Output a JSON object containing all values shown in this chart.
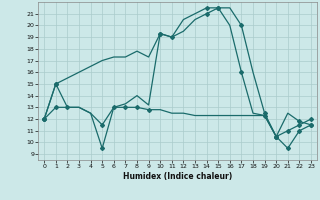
{
  "xlabel": "Humidex (Indice chaleur)",
  "bg_color": "#cce8e8",
  "grid_color": "#aacccc",
  "line_color": "#1a6b6b",
  "xlim": [
    -0.5,
    23.5
  ],
  "ylim": [
    8.5,
    22
  ],
  "yticks": [
    9,
    10,
    11,
    12,
    13,
    14,
    15,
    16,
    17,
    18,
    19,
    20,
    21
  ],
  "xticks": [
    0,
    1,
    2,
    3,
    4,
    5,
    6,
    7,
    8,
    9,
    10,
    11,
    12,
    13,
    14,
    15,
    16,
    17,
    18,
    19,
    20,
    21,
    22,
    23
  ],
  "line1_x": [
    0,
    1,
    2,
    3,
    4,
    5,
    6,
    7,
    8,
    9,
    10,
    11,
    12,
    13,
    14,
    15,
    16,
    17,
    18,
    19,
    20,
    21,
    22,
    23
  ],
  "line1_y": [
    12,
    15,
    13,
    13,
    12.5,
    9.5,
    13,
    13.3,
    14,
    13.2,
    19.3,
    19,
    20.5,
    21,
    21.5,
    21.5,
    20,
    16,
    12.5,
    12.3,
    10.5,
    9.5,
    11,
    11.5
  ],
  "line2_x": [
    0,
    1,
    2,
    3,
    4,
    5,
    6,
    7,
    8,
    9,
    10,
    11,
    12,
    13,
    14,
    15,
    16,
    17,
    18,
    19,
    20,
    21,
    22,
    23
  ],
  "line2_y": [
    12,
    13,
    13,
    13,
    12.5,
    11.5,
    13,
    13,
    13,
    12.8,
    12.8,
    12.5,
    12.5,
    12.3,
    12.3,
    12.3,
    12.3,
    12.3,
    12.3,
    12.3,
    10.5,
    12.5,
    11.8,
    11.5
  ],
  "line3_x": [
    0,
    1,
    2,
    3,
    4,
    5,
    6,
    7,
    8,
    9,
    10,
    11,
    12,
    13,
    14,
    15,
    16,
    17,
    18,
    19,
    20,
    21,
    22,
    23
  ],
  "line3_y": [
    12,
    15,
    15.5,
    16,
    16.5,
    17,
    17.3,
    17.3,
    17.8,
    17.3,
    19.3,
    19,
    19.5,
    20.5,
    21,
    21.5,
    21.5,
    20,
    16,
    12.5,
    10.5,
    11,
    11.5,
    12
  ],
  "marker1_x": [
    0,
    1,
    5,
    10,
    11,
    14,
    15,
    17,
    19,
    20,
    21,
    22,
    23
  ],
  "marker1_y": [
    12,
    15,
    9.5,
    19.3,
    19,
    21.5,
    21.5,
    16,
    12.3,
    10.5,
    9.5,
    11,
    11.5
  ],
  "marker2_x": [
    0,
    1,
    2,
    5,
    6,
    7,
    8,
    9,
    20,
    22,
    23
  ],
  "marker2_y": [
    12,
    13,
    13,
    11.5,
    13,
    13,
    13,
    12.8,
    10.5,
    11.8,
    11.5
  ],
  "marker3_x": [
    0,
    1,
    10,
    14,
    15,
    17,
    19,
    20,
    21,
    22,
    23
  ],
  "marker3_y": [
    12,
    15,
    19.3,
    21,
    21.5,
    20,
    12.5,
    10.5,
    11,
    11.5,
    12
  ]
}
